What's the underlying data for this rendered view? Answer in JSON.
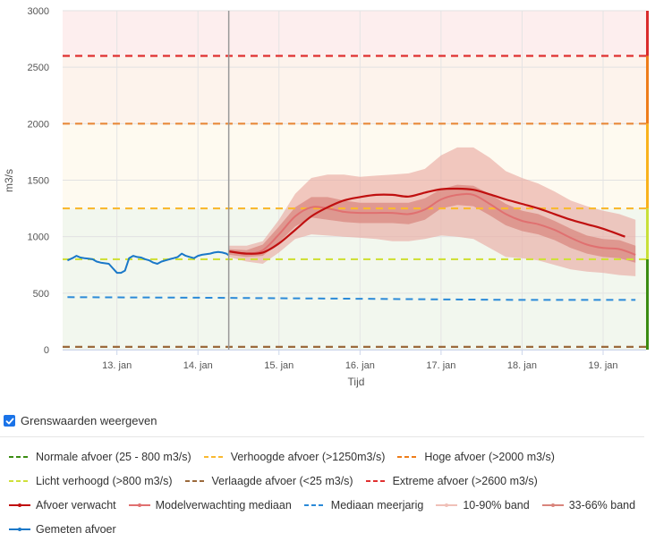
{
  "chart_data": {
    "type": "line",
    "title": "",
    "xlabel": "Tijd",
    "ylabel": "m3/s",
    "ylim": [
      0,
      3000
    ],
    "xlim_days": [
      12.33,
      19.53
    ],
    "yticks": [
      0,
      500,
      1000,
      1500,
      2000,
      2500,
      3000
    ],
    "xticks": [
      {
        "day": 13,
        "label": "13. jan"
      },
      {
        "day": 14,
        "label": "14. jan"
      },
      {
        "day": 15,
        "label": "15. jan"
      },
      {
        "day": 16,
        "label": "16. jan"
      },
      {
        "day": 17,
        "label": "17. jan"
      },
      {
        "day": 18,
        "label": "18. jan"
      },
      {
        "day": 19,
        "label": "19. jan"
      }
    ],
    "now_day": 14.38,
    "grid": true,
    "zones": [
      {
        "from": 0,
        "to": 1250,
        "color": "#f2f7ee"
      },
      {
        "from": 1250,
        "to": 2000,
        "color": "#fefaf0"
      },
      {
        "from": 2000,
        "to": 2600,
        "color": "#fdf3ec"
      },
      {
        "from": 2600,
        "to": 3000,
        "color": "#fdeeee"
      }
    ],
    "status_bar": [
      {
        "from": 0,
        "to": 800,
        "color": "#3b8c12"
      },
      {
        "from": 800,
        "to": 1250,
        "color": "#c8e03a"
      },
      {
        "from": 1250,
        "to": 2000,
        "color": "#f9b21c"
      },
      {
        "from": 2000,
        "to": 2600,
        "color": "#ee7d1a"
      },
      {
        "from": 2600,
        "to": 3000,
        "color": "#d92b2b"
      }
    ],
    "thresholds": [
      {
        "name": "Extreme afvoer",
        "value": 2600,
        "color": "#e03030"
      },
      {
        "name": "Hoge afvoer",
        "value": 2000,
        "color": "#e8893a"
      },
      {
        "name": "Verhoogde afvoer",
        "value": 1250,
        "color": "#f9b930"
      },
      {
        "name": "Licht verhoogd",
        "value": 800,
        "color": "#cfe03a"
      },
      {
        "name": "Verlaagde afvoer",
        "value": 25,
        "color": "#9b6a3c"
      }
    ],
    "mediaan_meerjarig": {
      "color": "#2b8ad8",
      "x": [
        12.39,
        14.0,
        15.0,
        16.0,
        17.0,
        18.0,
        19.4
      ],
      "y": [
        465,
        460,
        455,
        450,
        445,
        440,
        440
      ]
    },
    "gemeten_afvoer": {
      "color": "#1a78c8",
      "x": [
        12.39,
        12.45,
        12.5,
        12.55,
        12.6,
        12.65,
        12.7,
        12.75,
        12.8,
        12.85,
        12.9,
        12.95,
        13.0,
        13.05,
        13.1,
        13.15,
        13.2,
        13.25,
        13.3,
        13.35,
        13.4,
        13.45,
        13.5,
        13.55,
        13.6,
        13.65,
        13.7,
        13.75,
        13.8,
        13.85,
        13.9,
        13.95,
        14.0,
        14.05,
        14.1,
        14.15,
        14.2,
        14.25,
        14.3,
        14.35,
        14.38
      ],
      "y": [
        790,
        810,
        830,
        815,
        810,
        805,
        800,
        780,
        770,
        765,
        760,
        720,
        680,
        680,
        700,
        810,
        830,
        820,
        815,
        800,
        790,
        770,
        760,
        780,
        790,
        800,
        810,
        820,
        850,
        830,
        820,
        810,
        830,
        840,
        845,
        850,
        860,
        865,
        860,
        850,
        835
      ]
    },
    "afvoer_verwacht": {
      "color": "#c01010",
      "x": [
        14.38,
        14.6,
        14.8,
        15.0,
        15.2,
        15.4,
        15.6,
        15.8,
        16.0,
        16.2,
        16.4,
        16.6,
        16.8,
        17.0,
        17.2,
        17.4,
        17.6,
        17.8,
        18.0,
        18.2,
        18.4,
        18.6,
        18.8,
        19.0,
        19.27
      ],
      "y": [
        870,
        850,
        860,
        940,
        1060,
        1180,
        1260,
        1320,
        1350,
        1370,
        1370,
        1355,
        1390,
        1420,
        1425,
        1415,
        1375,
        1330,
        1290,
        1250,
        1200,
        1150,
        1110,
        1070,
        1000
      ]
    },
    "modelverwachting_mediaan": {
      "color": "#e07070",
      "x": [
        14.38,
        14.6,
        14.8,
        15.0,
        15.2,
        15.4,
        15.6,
        15.8,
        16.0,
        16.2,
        16.4,
        16.6,
        16.8,
        17.0,
        17.2,
        17.4,
        17.6,
        17.8,
        18.0,
        18.2,
        18.4,
        18.6,
        18.8,
        19.0,
        19.2,
        19.4
      ],
      "y": [
        870,
        850,
        880,
        1020,
        1180,
        1260,
        1250,
        1220,
        1210,
        1210,
        1210,
        1200,
        1240,
        1330,
        1370,
        1370,
        1290,
        1200,
        1140,
        1110,
        1060,
        990,
        930,
        900,
        890,
        840
      ]
    },
    "band_10_90": {
      "color": "#e8a8a0",
      "x": [
        14.38,
        14.6,
        14.8,
        15.0,
        15.2,
        15.4,
        15.6,
        15.8,
        16.0,
        16.2,
        16.4,
        16.6,
        16.8,
        17.0,
        17.2,
        17.4,
        17.6,
        17.8,
        18.0,
        18.2,
        18.4,
        18.6,
        18.8,
        19.0,
        19.2,
        19.4
      ],
      "low": [
        820,
        780,
        760,
        860,
        980,
        1020,
        1010,
        1000,
        990,
        980,
        960,
        960,
        980,
        1010,
        1000,
        980,
        900,
        820,
        810,
        790,
        750,
        710,
        690,
        680,
        660,
        650
      ],
      "high": [
        920,
        920,
        960,
        1150,
        1380,
        1520,
        1550,
        1550,
        1530,
        1540,
        1550,
        1560,
        1600,
        1720,
        1790,
        1790,
        1700,
        1580,
        1520,
        1470,
        1400,
        1320,
        1270,
        1230,
        1200,
        1150
      ]
    },
    "band_33_66": {
      "color": "#d9857c",
      "x": [
        14.38,
        14.6,
        14.8,
        15.0,
        15.2,
        15.4,
        15.6,
        15.8,
        16.0,
        16.2,
        16.4,
        16.6,
        16.8,
        17.0,
        17.2,
        17.4,
        17.6,
        17.8,
        18.0,
        18.2,
        18.4,
        18.6,
        18.8,
        19.0,
        19.2,
        19.4
      ],
      "low": [
        840,
        820,
        830,
        950,
        1090,
        1170,
        1150,
        1130,
        1120,
        1120,
        1120,
        1110,
        1150,
        1250,
        1280,
        1270,
        1190,
        1100,
        1050,
        1020,
        970,
        900,
        850,
        820,
        810,
        770
      ],
      "high": [
        890,
        880,
        930,
        1090,
        1260,
        1350,
        1350,
        1320,
        1300,
        1300,
        1300,
        1300,
        1340,
        1420,
        1460,
        1450,
        1380,
        1290,
        1230,
        1200,
        1140,
        1070,
        1010,
        980,
        970,
        920
      ]
    }
  },
  "toggle": {
    "label": "Grenswaarden weergeven",
    "checked": true
  },
  "legend": {
    "rows": [
      [
        {
          "label": "Normale afvoer (25 - 800 m3/s)",
          "color": "#3b8c12",
          "style": "dashed"
        },
        {
          "label": "Verhoogde afvoer (>1250m3/s)",
          "color": "#f9b930",
          "style": "dashed"
        },
        {
          "label": "Hoge afvoer (>2000 m3/s)",
          "color": "#ee7d1a",
          "style": "dashed"
        }
      ],
      [
        {
          "label": "Licht verhoogd (>800 m3/s)",
          "color": "#cfe03a",
          "style": "dashed"
        },
        {
          "label": "Verlaagde afvoer (<25 m3/s)",
          "color": "#9b6a3c",
          "style": "dashed"
        },
        {
          "label": "Extreme afvoer (>2600 m3/s)",
          "color": "#e03030",
          "style": "dashed"
        }
      ],
      [
        {
          "label": "Afvoer verwacht",
          "color": "#c01010",
          "style": "solid-marker"
        },
        {
          "label": "Modelverwachting mediaan",
          "color": "#e07070",
          "style": "solid-marker"
        },
        {
          "label": "Mediaan meerjarig",
          "color": "#2b8ad8",
          "style": "dashed"
        },
        {
          "label": "10-90% band",
          "color": "#f0c0b8",
          "style": "solid-marker"
        },
        {
          "label": "33-66% band",
          "color": "#d9857c",
          "style": "solid-marker"
        }
      ],
      [
        {
          "label": "Gemeten afvoer",
          "color": "#1a78c8",
          "style": "solid-marker"
        }
      ]
    ]
  }
}
